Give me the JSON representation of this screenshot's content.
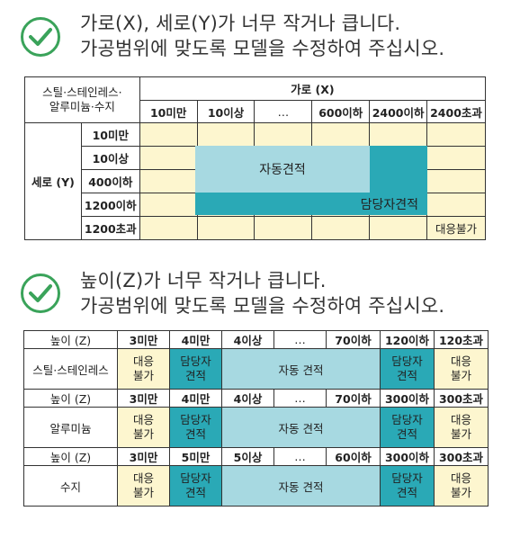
{
  "sec1": {
    "message_line1": "가로(X), 세로(Y)가 너무 작거나 큽니다.",
    "message_line2": "가공범위에 맞도록 모델을 수정하여 주십시오.",
    "corner_line1": "스틸·스테인레스·",
    "corner_line2": "알루미늄·수지",
    "x_header": "가로 (X)",
    "x_cols": [
      "10미만",
      "10이상",
      "…",
      "600이하",
      "2400이하",
      "2400초과"
    ],
    "y_header": "세로 (Y)",
    "y_rows": [
      "10미만",
      "10이상",
      "400이하",
      "1200이하",
      "1200초과"
    ],
    "auto_quote": "자동견적",
    "staff_quote": "담당자견적",
    "unavailable": "대응불가"
  },
  "sec2": {
    "message_line1": "높이(Z)가 너무 작거나 큽니다.",
    "message_line2": "가공범위에 맞도록 모델을 수정하여 주십시오.",
    "groups": [
      {
        "header_label": "높이 (Z)",
        "cols": [
          "3미만",
          "4미만",
          "4이상",
          "…",
          "70이하",
          "120이하",
          "120초과"
        ],
        "material": "스틸·스테인레스",
        "unavailable": "대응\n불가",
        "staff": "담당자\n견적",
        "auto": "자동 견적"
      },
      {
        "header_label": "높이 (Z)",
        "cols": [
          "3미만",
          "4미만",
          "4이상",
          "…",
          "70이하",
          "300이하",
          "300초과"
        ],
        "material": "알루미늄",
        "unavailable": "대응\n불가",
        "staff": "담당자\n견적",
        "auto": "자동 견적"
      },
      {
        "header_label": "높이 (Z)",
        "cols": [
          "3미만",
          "5미만",
          "5이상",
          "…",
          "60이하",
          "300이하",
          "300초과"
        ],
        "material": "수지",
        "unavailable": "대응\n불가",
        "staff": "담당자\n견적",
        "auto": "자동 견적"
      }
    ]
  },
  "colors": {
    "teal": "#2aa9b6",
    "light_blue": "#a7d9e1",
    "cream": "#fdf6cf",
    "check_green": "#3aa35a"
  }
}
